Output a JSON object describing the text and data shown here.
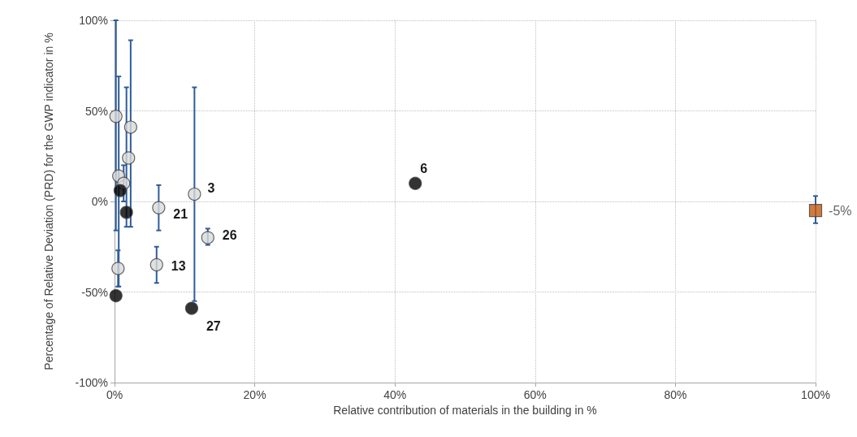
{
  "chart_data": {
    "type": "scatter",
    "xlabel": "Relative contribution of materials in the building in %",
    "ylabel": "Percentage of Relative Deviation (PRD) for the GWP indicator in %",
    "xlim": [
      0,
      100
    ],
    "ylim": [
      -100,
      100
    ],
    "xticks": [
      {
        "value": 0,
        "label": "0%"
      },
      {
        "value": 20,
        "label": "20%"
      },
      {
        "value": 40,
        "label": "40%"
      },
      {
        "value": 60,
        "label": "60%"
      },
      {
        "value": 80,
        "label": "80%"
      },
      {
        "value": 100,
        "label": "100%"
      }
    ],
    "yticks": [
      {
        "value": -100,
        "label": "-100%"
      },
      {
        "value": -50,
        "label": "-50%"
      },
      {
        "value": 0,
        "label": "0%"
      },
      {
        "value": 50,
        "label": "50%"
      },
      {
        "value": 100,
        "label": "100%"
      }
    ],
    "grid": true,
    "series": [
      {
        "color": "#d9d9d9",
        "marker": "circle",
        "x": [
          0.2,
          0.6,
          1.3,
          2.0,
          2.3,
          0.5,
          6.3,
          6.0,
          11.4,
          13.3
        ],
        "values": [
          47,
          14,
          10,
          24,
          41,
          -37,
          -3.5,
          -35,
          4,
          -20
        ],
        "errors": [
          [
            -16,
            100
          ],
          [
            -47,
            69
          ],
          [
            0,
            20
          ],
          null,
          [
            -14,
            89
          ],
          [
            -47,
            -27
          ],
          [
            -16,
            9
          ],
          [
            -45,
            -25
          ],
          [
            -55,
            63
          ],
          [
            -24,
            -15
          ]
        ]
      },
      {
        "color": "#000000",
        "marker": "circle",
        "x": [
          0.8,
          1.7,
          0.2,
          11.0,
          42.9
        ],
        "values": [
          6,
          -6,
          -52,
          -59,
          10
        ],
        "errors": [
          null,
          [
            -14,
            63
          ],
          null,
          null,
          null
        ]
      },
      {
        "color": "#c55a11",
        "marker": "square",
        "x": [
          100
        ],
        "values": [
          -5
        ],
        "errors": [
          [
            -12,
            3
          ]
        ],
        "value_labels": [
          "-5%"
        ]
      }
    ],
    "annotations": [
      {
        "text": "3",
        "x": 11.4,
        "y": 4
      },
      {
        "text": "21",
        "x": 6.3,
        "y": -3.5
      },
      {
        "text": "26",
        "x": 13.3,
        "y": -20
      },
      {
        "text": "13",
        "x": 6.0,
        "y": -35
      },
      {
        "text": "27",
        "x": 11.0,
        "y": -59
      },
      {
        "text": "6",
        "x": 42.9,
        "y": 10
      }
    ]
  }
}
